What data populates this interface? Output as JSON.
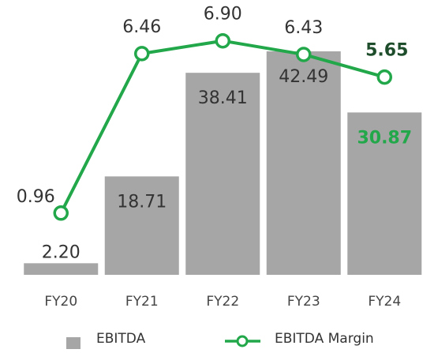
{
  "chart_data": {
    "type": "combo",
    "categories": [
      "FY20",
      "FY21",
      "FY22",
      "FY23",
      "FY24"
    ],
    "series": [
      {
        "name": "EBITDA",
        "type": "bar",
        "color": "#a6a6a6",
        "values": [
          2.2,
          18.71,
          38.41,
          42.49,
          30.87
        ],
        "value_labels": [
          "2.20",
          "18.71",
          "38.41",
          "42.49",
          "30.87"
        ]
      },
      {
        "name": "EBITDA Margin",
        "type": "line",
        "axis": "y2",
        "color": "#22a84a",
        "values": [
          0.96,
          6.46,
          6.9,
          6.43,
          5.65
        ],
        "value_labels": [
          "0.96",
          "6.46",
          "6.90",
          "6.43",
          "5.65"
        ]
      }
    ],
    "ylim": [
      0,
      50
    ],
    "y2lim": [
      -1.17,
      7.9
    ],
    "grid": false,
    "legend": "bottom"
  }
}
